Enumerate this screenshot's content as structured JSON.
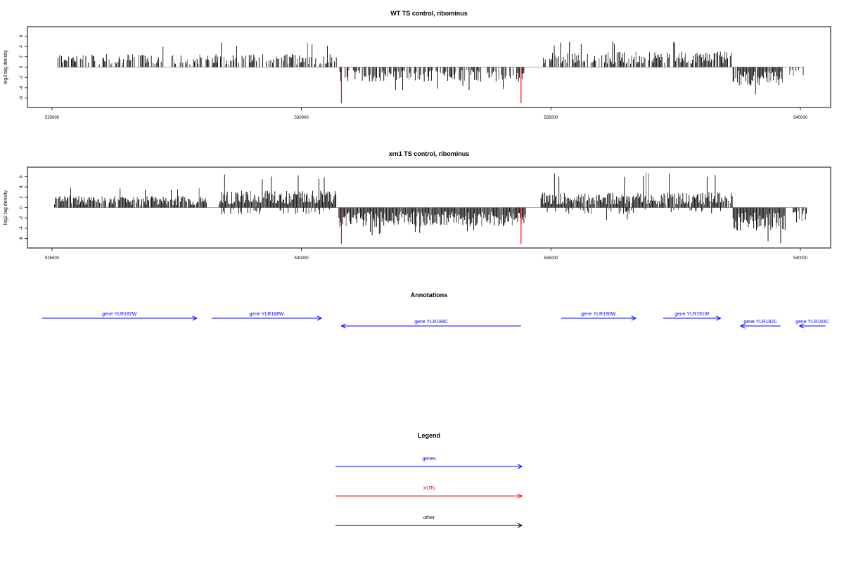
{
  "chart_data": [
    {
      "type": "bar",
      "title": "WT TS control, ribominus",
      "xlabel": "",
      "ylabel": "log2 tag density",
      "xlim": [
        525000,
        540000
      ],
      "ylim": [
        -7,
        7
      ],
      "xticks": [
        "525000",
        "530000",
        "535000",
        "540000"
      ],
      "yticks": [
        "-6",
        "-4",
        "-2",
        "0",
        "2",
        "4",
        "6"
      ],
      "regions": [
        {
          "strand": "+",
          "start": 525100,
          "end": 530700,
          "mean": 1.7,
          "max": 4.8,
          "density": 0.55
        },
        {
          "strand": "-",
          "start": 530750,
          "end": 534500,
          "mean": 1.9,
          "max": 4.5,
          "density": 0.6
        },
        {
          "strand": "+",
          "start": 534850,
          "end": 538650,
          "mean": 2.0,
          "max": 5.0,
          "density": 0.7
        },
        {
          "strand": "-",
          "start": 538650,
          "end": 539650,
          "mean": 2.4,
          "max": 5.6,
          "density": 0.9
        },
        {
          "strand": "-",
          "start": 539750,
          "end": 540100,
          "mean": 1.2,
          "max": 2.2,
          "density": 0.5
        }
      ],
      "markers": [
        {
          "x": 530800,
          "y": -7,
          "color": "#ff0000"
        },
        {
          "x": 534400,
          "y": -7,
          "color": "#ff0000"
        }
      ]
    },
    {
      "type": "bar",
      "title": "xrn1 TS control, ribominus",
      "xlabel": "",
      "ylabel": "log2 tag density",
      "xlim": [
        525000,
        540000
      ],
      "ylim": [
        -7,
        7
      ],
      "xticks": [
        "525000",
        "530000",
        "535000",
        "540000"
      ],
      "yticks": [
        "-6",
        "-4",
        "-2",
        "0",
        "2",
        "4",
        "6"
      ],
      "regions": [
        {
          "strand": "+",
          "start": 525050,
          "end": 528100,
          "mean": 1.5,
          "max": 3.9,
          "density": 0.9
        },
        {
          "strand": "+",
          "start": 528350,
          "end": 530700,
          "mean": 2.2,
          "max": 6.5,
          "density": 1.0
        },
        {
          "strand": "-",
          "start": 528400,
          "end": 530600,
          "mean": 0.9,
          "max": 2.5,
          "density": 0.25
        },
        {
          "strand": "-",
          "start": 530750,
          "end": 534500,
          "mean": 2.5,
          "max": 5.5,
          "density": 1.0
        },
        {
          "strand": "+",
          "start": 534800,
          "end": 538650,
          "mean": 2.0,
          "max": 6.8,
          "density": 0.95
        },
        {
          "strand": "-",
          "start": 534800,
          "end": 538650,
          "mean": 0.8,
          "max": 2.8,
          "density": 0.15
        },
        {
          "strand": "-",
          "start": 538650,
          "end": 539700,
          "mean": 3.0,
          "max": 7.0,
          "density": 1.0
        },
        {
          "strand": "-",
          "start": 539850,
          "end": 540150,
          "mean": 2.0,
          "max": 3.7,
          "density": 0.8
        }
      ],
      "markers": [
        {
          "x": 530800,
          "y": -7,
          "color": "#ff0000"
        },
        {
          "x": 534400,
          "y": -7,
          "color": "#ff0000"
        }
      ]
    }
  ],
  "annotations": {
    "title": "Annotations",
    "color": "#0000ff",
    "genes": [
      {
        "label": "gene YLR187W",
        "start": 524800,
        "end": 527900,
        "strand": "+",
        "row": 0
      },
      {
        "label": "gene YLR188W",
        "start": 528200,
        "end": 530400,
        "strand": "+",
        "row": 0
      },
      {
        "label": "gene YLR189C",
        "start": 530800,
        "end": 534400,
        "strand": "-",
        "row": 1
      },
      {
        "label": "gene YLR190W",
        "start": 535200,
        "end": 536700,
        "strand": "+",
        "row": 0
      },
      {
        "label": "gene YLR191W",
        "start": 537250,
        "end": 538400,
        "strand": "+",
        "row": 0
      },
      {
        "label": "gene YLR192C",
        "start": 538800,
        "end": 539600,
        "strand": "-",
        "row": 1
      },
      {
        "label": "gene YLR193C",
        "start": 539980,
        "end": 540500,
        "strand": "-",
        "row": 1
      }
    ]
  },
  "legend": {
    "title": "Legend",
    "items": [
      {
        "label": "genes",
        "color": "#0000ff"
      },
      {
        "label": "XUTs",
        "color": "#ff0000"
      },
      {
        "label": "other",
        "color": "#000000"
      }
    ]
  }
}
